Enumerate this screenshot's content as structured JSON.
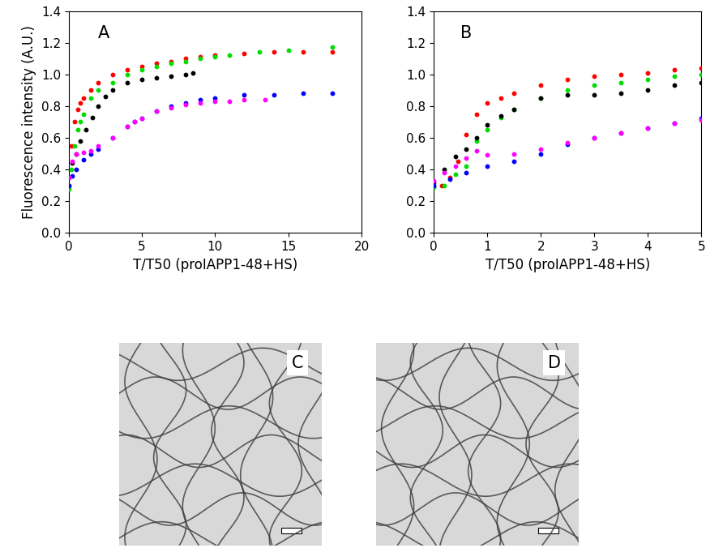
{
  "chart_data": [
    {
      "type": "scatter",
      "annotations": [
        "A"
      ],
      "x_label": "T/T50 (proIAPP1-48+HS)",
      "y_label": "Fluorescence intensity (A.U.)",
      "xlim": [
        0,
        20
      ],
      "xticks": [
        0,
        5,
        10,
        15,
        20
      ],
      "ylim": [
        0,
        1.4
      ],
      "yticks": [
        {
          "value": 0.0,
          "label": "0.0"
        },
        {
          "value": 0.2,
          "label": "0.2"
        },
        {
          "value": 0.4,
          "label": "0.4"
        },
        {
          "value": 0.6,
          "label": "0.6"
        },
        {
          "value": 0.8,
          "label": "0.8"
        },
        {
          "value": 1.0,
          "label": "1.0"
        },
        {
          "value": 1.2,
          "label": "1.2"
        },
        {
          "value": 1.4,
          "label": "1.4"
        }
      ],
      "marker": "o",
      "series": [
        {
          "color": "#ff0000",
          "x": [
            0,
            0.2,
            0.4,
            0.6,
            0.8,
            1.0,
            1.5,
            2,
            3,
            4,
            5,
            6,
            7,
            8,
            9,
            10,
            12,
            14,
            16,
            18
          ],
          "values": [
            0.3,
            0.55,
            0.7,
            0.78,
            0.82,
            0.85,
            0.9,
            0.95,
            1.0,
            1.03,
            1.05,
            1.07,
            1.08,
            1.1,
            1.11,
            1.12,
            1.13,
            1.14,
            1.14,
            1.14
          ]
        },
        {
          "color": "#00dd00",
          "x": [
            0,
            0.2,
            0.4,
            0.6,
            0.8,
            1.0,
            1.5,
            2,
            3,
            4,
            5,
            6,
            7,
            8,
            9,
            10,
            11,
            13,
            15,
            18
          ],
          "values": [
            0.28,
            0.4,
            0.55,
            0.65,
            0.7,
            0.75,
            0.85,
            0.9,
            0.95,
            1.0,
            1.03,
            1.05,
            1.07,
            1.08,
            1.1,
            1.11,
            1.12,
            1.14,
            1.15,
            1.17
          ]
        },
        {
          "color": "#000000",
          "x": [
            0,
            0.25,
            0.5,
            0.8,
            1.2,
            1.6,
            2,
            2.5,
            3,
            4,
            5,
            6,
            7,
            8,
            8.5
          ],
          "values": [
            0.35,
            0.44,
            0.5,
            0.58,
            0.65,
            0.73,
            0.8,
            0.86,
            0.9,
            0.95,
            0.97,
            0.98,
            0.99,
            1.0,
            1.01
          ]
        },
        {
          "color": "#0000ff",
          "x": [
            0,
            0.25,
            0.5,
            1.0,
            1.5,
            2,
            3,
            4,
            4.5,
            5,
            6,
            7,
            8,
            9,
            10,
            12,
            14,
            16,
            18
          ],
          "values": [
            0.3,
            0.36,
            0.4,
            0.46,
            0.5,
            0.53,
            0.6,
            0.67,
            0.7,
            0.72,
            0.77,
            0.8,
            0.82,
            0.84,
            0.85,
            0.87,
            0.87,
            0.88,
            0.88
          ]
        },
        {
          "color": "#ff00ff",
          "x": [
            0,
            0.25,
            0.5,
            1.0,
            1.5,
            2,
            3,
            4,
            4.5,
            5,
            6,
            7,
            8,
            9,
            10,
            11,
            12,
            13.4
          ],
          "values": [
            0.35,
            0.45,
            0.5,
            0.51,
            0.52,
            0.55,
            0.6,
            0.67,
            0.7,
            0.72,
            0.77,
            0.79,
            0.81,
            0.82,
            0.83,
            0.83,
            0.84,
            0.84
          ]
        }
      ]
    },
    {
      "type": "scatter",
      "annotations": [
        "B"
      ],
      "x_label": "T/T50 (proIAPP1-48+HS)",
      "xlim": [
        0,
        5
      ],
      "xticks": [
        0,
        1,
        2,
        3,
        4,
        5
      ],
      "ylim": [
        0,
        1.4
      ],
      "yticks": [
        {
          "value": 0.0,
          "label": "0.0"
        },
        {
          "value": 0.2,
          "label": "0.2"
        },
        {
          "value": 0.4,
          "label": "0.4"
        },
        {
          "value": 0.6,
          "label": "0.6"
        },
        {
          "value": 0.8,
          "label": "0.8"
        },
        {
          "value": 1.0,
          "label": "1.0"
        },
        {
          "value": 1.2,
          "label": "1.2"
        },
        {
          "value": 1.4,
          "label": "1.4"
        }
      ],
      "marker": "o",
      "series": [
        {
          "color": "#ff0000",
          "x": [
            0,
            0.15,
            0.3,
            0.45,
            0.6,
            0.8,
            1.0,
            1.25,
            1.5,
            2,
            2.5,
            3,
            3.5,
            4,
            4.5,
            5
          ],
          "values": [
            0.3,
            0.3,
            0.35,
            0.45,
            0.62,
            0.75,
            0.82,
            0.85,
            0.88,
            0.93,
            0.97,
            0.99,
            1.0,
            1.01,
            1.03,
            1.04
          ]
        },
        {
          "color": "#00dd00",
          "x": [
            0,
            0.2,
            0.4,
            0.6,
            0.8,
            1.0,
            1.25,
            1.5,
            2,
            2.5,
            3,
            3.5,
            4,
            4.5,
            5
          ],
          "values": [
            0.29,
            0.3,
            0.37,
            0.42,
            0.58,
            0.65,
            0.73,
            0.78,
            0.85,
            0.9,
            0.93,
            0.95,
            0.97,
            0.99,
            1.0
          ]
        },
        {
          "color": "#000000",
          "x": [
            0,
            0.2,
            0.4,
            0.6,
            0.8,
            1.0,
            1.25,
            1.5,
            2,
            2.5,
            3,
            3.5,
            4,
            4.5,
            5
          ],
          "values": [
            0.32,
            0.4,
            0.48,
            0.53,
            0.6,
            0.68,
            0.74,
            0.78,
            0.85,
            0.87,
            0.87,
            0.88,
            0.9,
            0.93,
            0.95
          ]
        },
        {
          "color": "#0000ff",
          "x": [
            0,
            0.3,
            0.6,
            1.0,
            1.5,
            2,
            2.5,
            3,
            3.5,
            4,
            4.5,
            5
          ],
          "values": [
            0.3,
            0.34,
            0.38,
            0.42,
            0.45,
            0.5,
            0.56,
            0.6,
            0.63,
            0.66,
            0.69,
            0.72
          ]
        },
        {
          "color": "#ff00ff",
          "x": [
            0,
            0.2,
            0.4,
            0.6,
            0.8,
            1.0,
            1.5,
            2,
            2.5,
            3,
            3.5,
            4,
            4.5,
            5
          ],
          "values": [
            0.33,
            0.38,
            0.42,
            0.47,
            0.52,
            0.49,
            0.5,
            0.53,
            0.57,
            0.6,
            0.63,
            0.66,
            0.69,
            0.71
          ]
        }
      ]
    }
  ],
  "images": [
    {
      "label": "C"
    },
    {
      "label": "D"
    }
  ]
}
